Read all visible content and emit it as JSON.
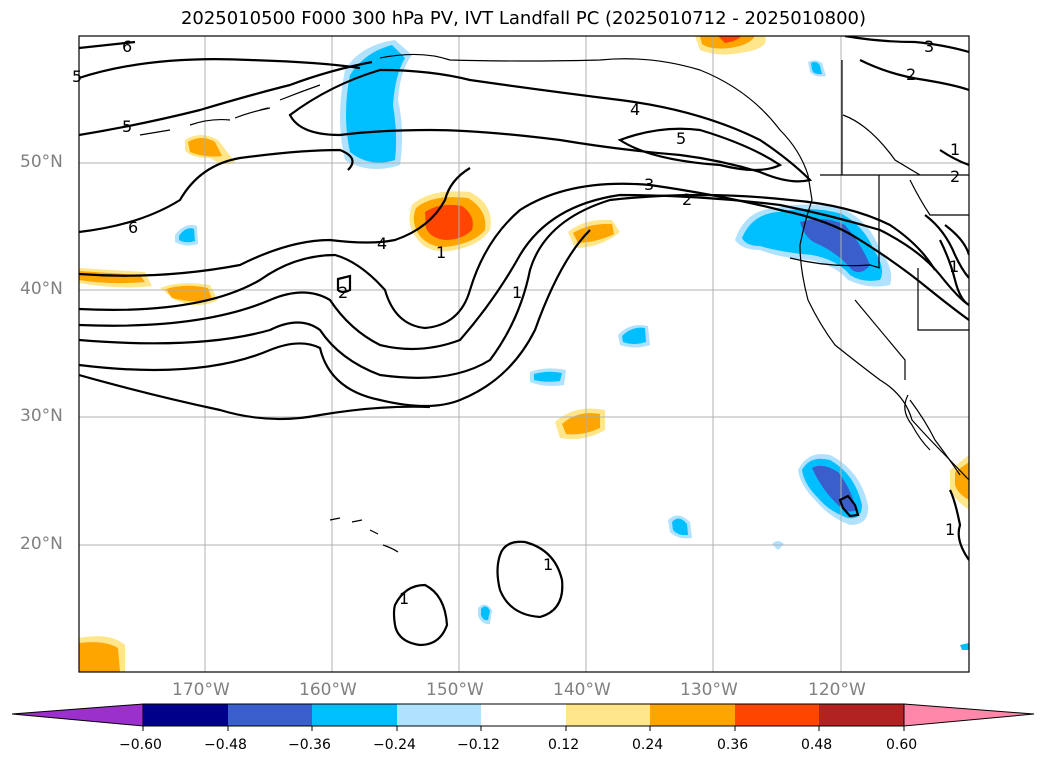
{
  "title": "2025010500 F000 300 hPa PV, IVT Landfall PC (2025010712 - 2025010800)",
  "lat_labels": [
    "50°N",
    "40°N",
    "30°N",
    "20°N"
  ],
  "lon_labels": [
    "170°W",
    "160°W",
    "150°W",
    "140°W",
    "130°W",
    "120°W"
  ],
  "colorbar": {
    "ticks": [
      "−0.60",
      "−0.48",
      "−0.36",
      "−0.24",
      "−0.12",
      "0.12",
      "0.24",
      "0.36",
      "0.48",
      "0.60"
    ],
    "colors": [
      "#9b30cc",
      "#00008b",
      "#3a5fcd",
      "#00bfff",
      "#b0e2ff",
      "#ffffff",
      "#ffe68a",
      "#ffa500",
      "#ff4500",
      "#b22222",
      "#ff88aa"
    ]
  },
  "contour_labels": [
    "6",
    "5",
    "6",
    "5",
    "4",
    "2",
    "4",
    "3",
    "2",
    "5",
    "3",
    "2",
    "1",
    "1",
    "1",
    "1",
    "1",
    "1",
    "2",
    "1"
  ],
  "colors": {
    "strong_neg": "#3a5fcd",
    "neg": "#00bfff",
    "weak_neg": "#b0e2ff",
    "weak_pos": "#ffe68a",
    "pos": "#ffa500",
    "strong_pos": "#ff4500"
  }
}
